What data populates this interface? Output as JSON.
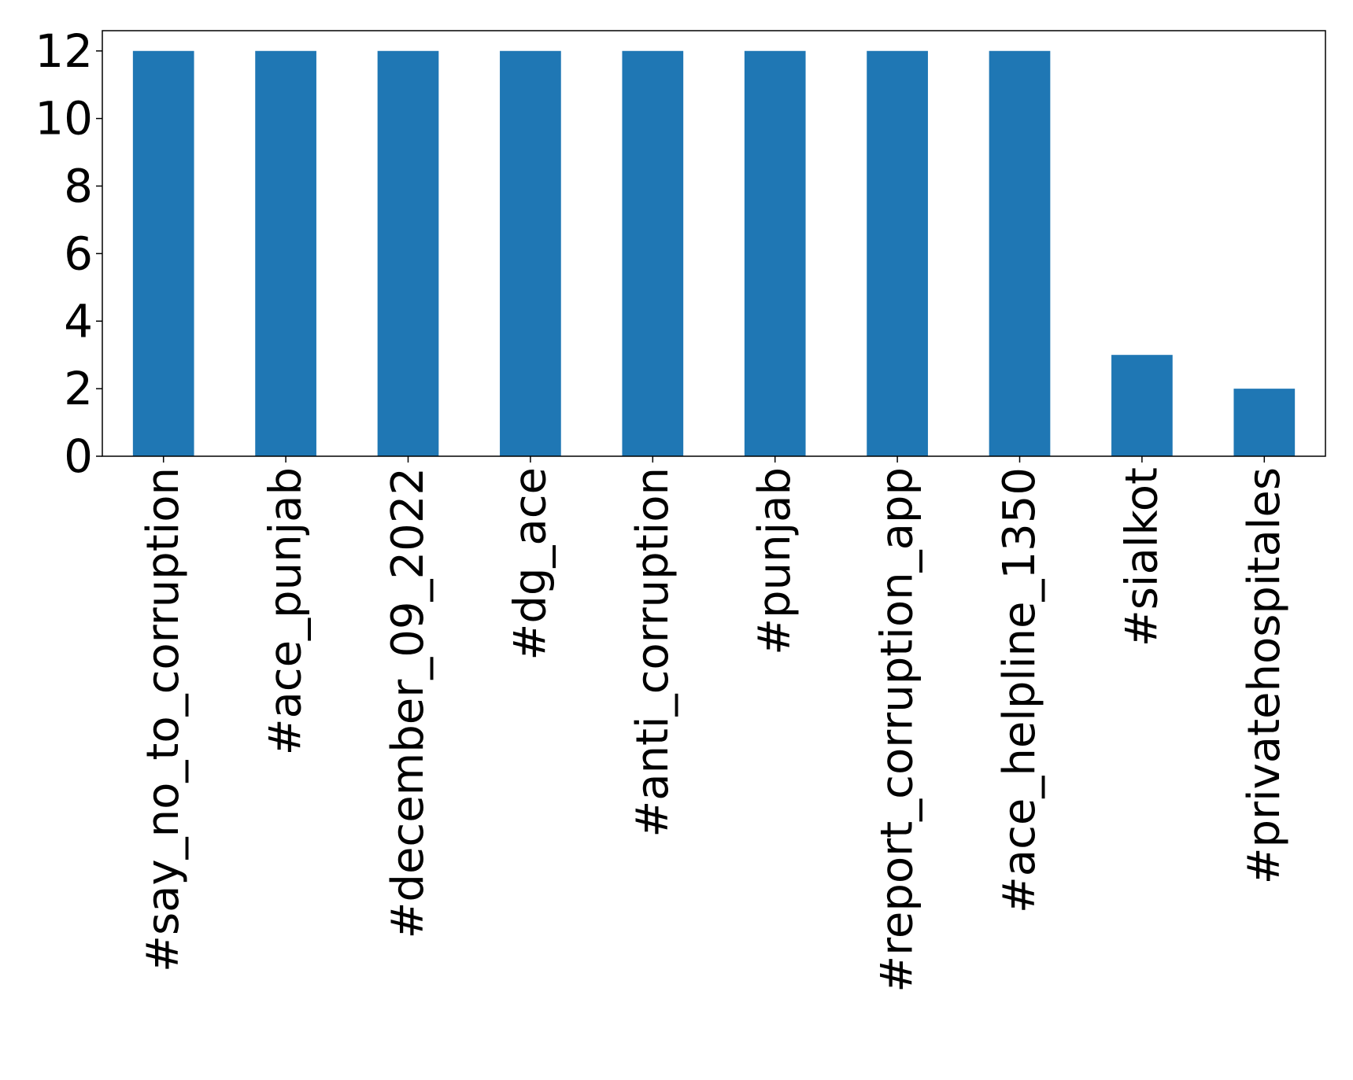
{
  "chart_data": {
    "type": "bar",
    "title": "",
    "xlabel": "",
    "ylabel": "",
    "categories": [
      "#say_no_to_corruption",
      "#ace_punjab",
      "#december_09_2022",
      "#dg_ace",
      "#anti_corruption",
      "#punjab",
      "#report_corruption_app",
      "#ace_helpline_1350",
      "#sialkot",
      "#privatehospitales"
    ],
    "values": [
      12,
      12,
      12,
      12,
      12,
      12,
      12,
      12,
      3,
      2
    ],
    "ylim": [
      0,
      12.6
    ],
    "yticks": [
      "0",
      "2",
      "4",
      "6",
      "8",
      "10",
      "12"
    ],
    "grid": false,
    "legend": "none",
    "colors": {
      "bar": "#1f77b4",
      "axis": "#000000",
      "background": "#ffffff"
    }
  }
}
